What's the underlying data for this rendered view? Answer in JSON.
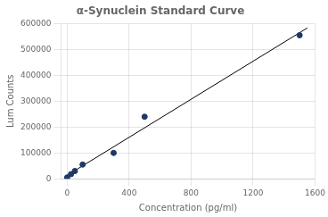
{
  "chart_data": {
    "type": "scatter",
    "title": "α-Synuclein Standard Curve",
    "xlabel": "Concentration (pg/ml)",
    "ylabel": "Lum Counts",
    "series": [
      {
        "type": "line",
        "color": "#000000",
        "x": [
          0,
          1550
        ],
        "values": [
          13294.048,
          583156.505
        ]
      },
      {
        "type": "scatter",
        "color": "#1F3864",
        "x": [
          0,
          25,
          50,
          100,
          300,
          500,
          1500
        ],
        "values": [
          5000,
          18000,
          30000,
          55000,
          100000,
          240000,
          555000
        ]
      }
    ],
    "xlim": [
      -40,
      1600
    ],
    "ylim": [
      0,
      600000
    ],
    "xticks": [
      0,
      400,
      800,
      1200,
      1600
    ],
    "yticks": [
      0,
      100000,
      200000,
      300000,
      400000,
      500000,
      600000
    ],
    "grid": true
  }
}
